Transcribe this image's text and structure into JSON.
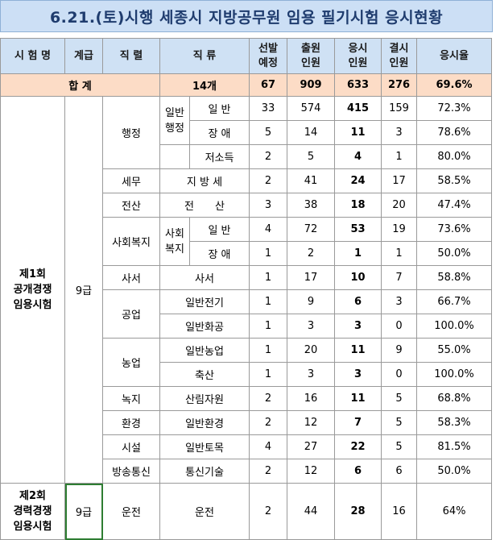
{
  "title": "6.21.(토)시행 세종시 지방공무원 임용 필기시험 응시현황",
  "headers": {
    "exam": "시 험 명",
    "grade": "계급",
    "series": "직 렬",
    "kind": "직 류",
    "planned": [
      "선발",
      "예정"
    ],
    "applied": [
      "출원",
      "인원"
    ],
    "taken": [
      "응시",
      "인원"
    ],
    "absent": [
      "결시",
      "인원"
    ],
    "rate": "응시율"
  },
  "total": {
    "label": "합 계",
    "kinds": "14개",
    "planned": "67",
    "applied": "909",
    "taken": "633",
    "absent": "276",
    "rate": "69.6%"
  },
  "exam1": {
    "label": [
      "제1회",
      "공개경쟁",
      "임용시험"
    ],
    "grade": "9급"
  },
  "exam2": {
    "label": [
      "제2회",
      "경력경쟁",
      "임용시험"
    ],
    "grade": "9급"
  },
  "groups": {
    "haengjeong": "행정",
    "ilban_haengjeong": [
      "일반",
      "행정"
    ],
    "sahoe": "사회복지",
    "sahoe_sub": [
      "사회",
      "복지"
    ],
    "gongeop": "공업",
    "nongeop": "농업"
  },
  "rows": [
    {
      "series": "",
      "kind": "일 반",
      "planned": "33",
      "applied": "574",
      "taken": "415",
      "absent": "159",
      "rate": "72.3%"
    },
    {
      "series": "",
      "kind": "장 애",
      "planned": "5",
      "applied": "14",
      "taken": "11",
      "absent": "3",
      "rate": "78.6%"
    },
    {
      "series": "",
      "kind": "저소득",
      "planned": "2",
      "applied": "5",
      "taken": "4",
      "absent": "1",
      "rate": "80.0%"
    },
    {
      "series": "세무",
      "kind": "지 방 세",
      "planned": "2",
      "applied": "41",
      "taken": "24",
      "absent": "17",
      "rate": "58.5%"
    },
    {
      "series": "전산",
      "kind": "전　　산",
      "planned": "3",
      "applied": "38",
      "taken": "18",
      "absent": "20",
      "rate": "47.4%"
    },
    {
      "series": "",
      "kind": "일 반",
      "planned": "4",
      "applied": "72",
      "taken": "53",
      "absent": "19",
      "rate": "73.6%"
    },
    {
      "series": "",
      "kind": "장 애",
      "planned": "1",
      "applied": "2",
      "taken": "1",
      "absent": "1",
      "rate": "50.0%"
    },
    {
      "series": "사서",
      "kind": "사서",
      "planned": "1",
      "applied": "17",
      "taken": "10",
      "absent": "7",
      "rate": "58.8%"
    },
    {
      "series": "",
      "kind": "일반전기",
      "planned": "1",
      "applied": "9",
      "taken": "6",
      "absent": "3",
      "rate": "66.7%"
    },
    {
      "series": "",
      "kind": "일반화공",
      "planned": "1",
      "applied": "3",
      "taken": "3",
      "absent": "0",
      "rate": "100.0%"
    },
    {
      "series": "",
      "kind": "일반농업",
      "planned": "1",
      "applied": "20",
      "taken": "11",
      "absent": "9",
      "rate": "55.0%"
    },
    {
      "series": "",
      "kind": "축산",
      "planned": "1",
      "applied": "3",
      "taken": "3",
      "absent": "0",
      "rate": "100.0%"
    },
    {
      "series": "녹지",
      "kind": "산림자원",
      "planned": "2",
      "applied": "16",
      "taken": "11",
      "absent": "5",
      "rate": "68.8%"
    },
    {
      "series": "환경",
      "kind": "일반환경",
      "planned": "2",
      "applied": "12",
      "taken": "7",
      "absent": "5",
      "rate": "58.3%"
    },
    {
      "series": "시설",
      "kind": "일반토목",
      "planned": "4",
      "applied": "27",
      "taken": "22",
      "absent": "5",
      "rate": "81.5%"
    },
    {
      "series": "방송통신",
      "kind": "통신기술",
      "planned": "2",
      "applied": "12",
      "taken": "6",
      "absent": "6",
      "rate": "50.0%"
    },
    {
      "series": "운전",
      "kind": "운전",
      "planned": "2",
      "applied": "44",
      "taken": "28",
      "absent": "16",
      "rate": "64%"
    }
  ]
}
